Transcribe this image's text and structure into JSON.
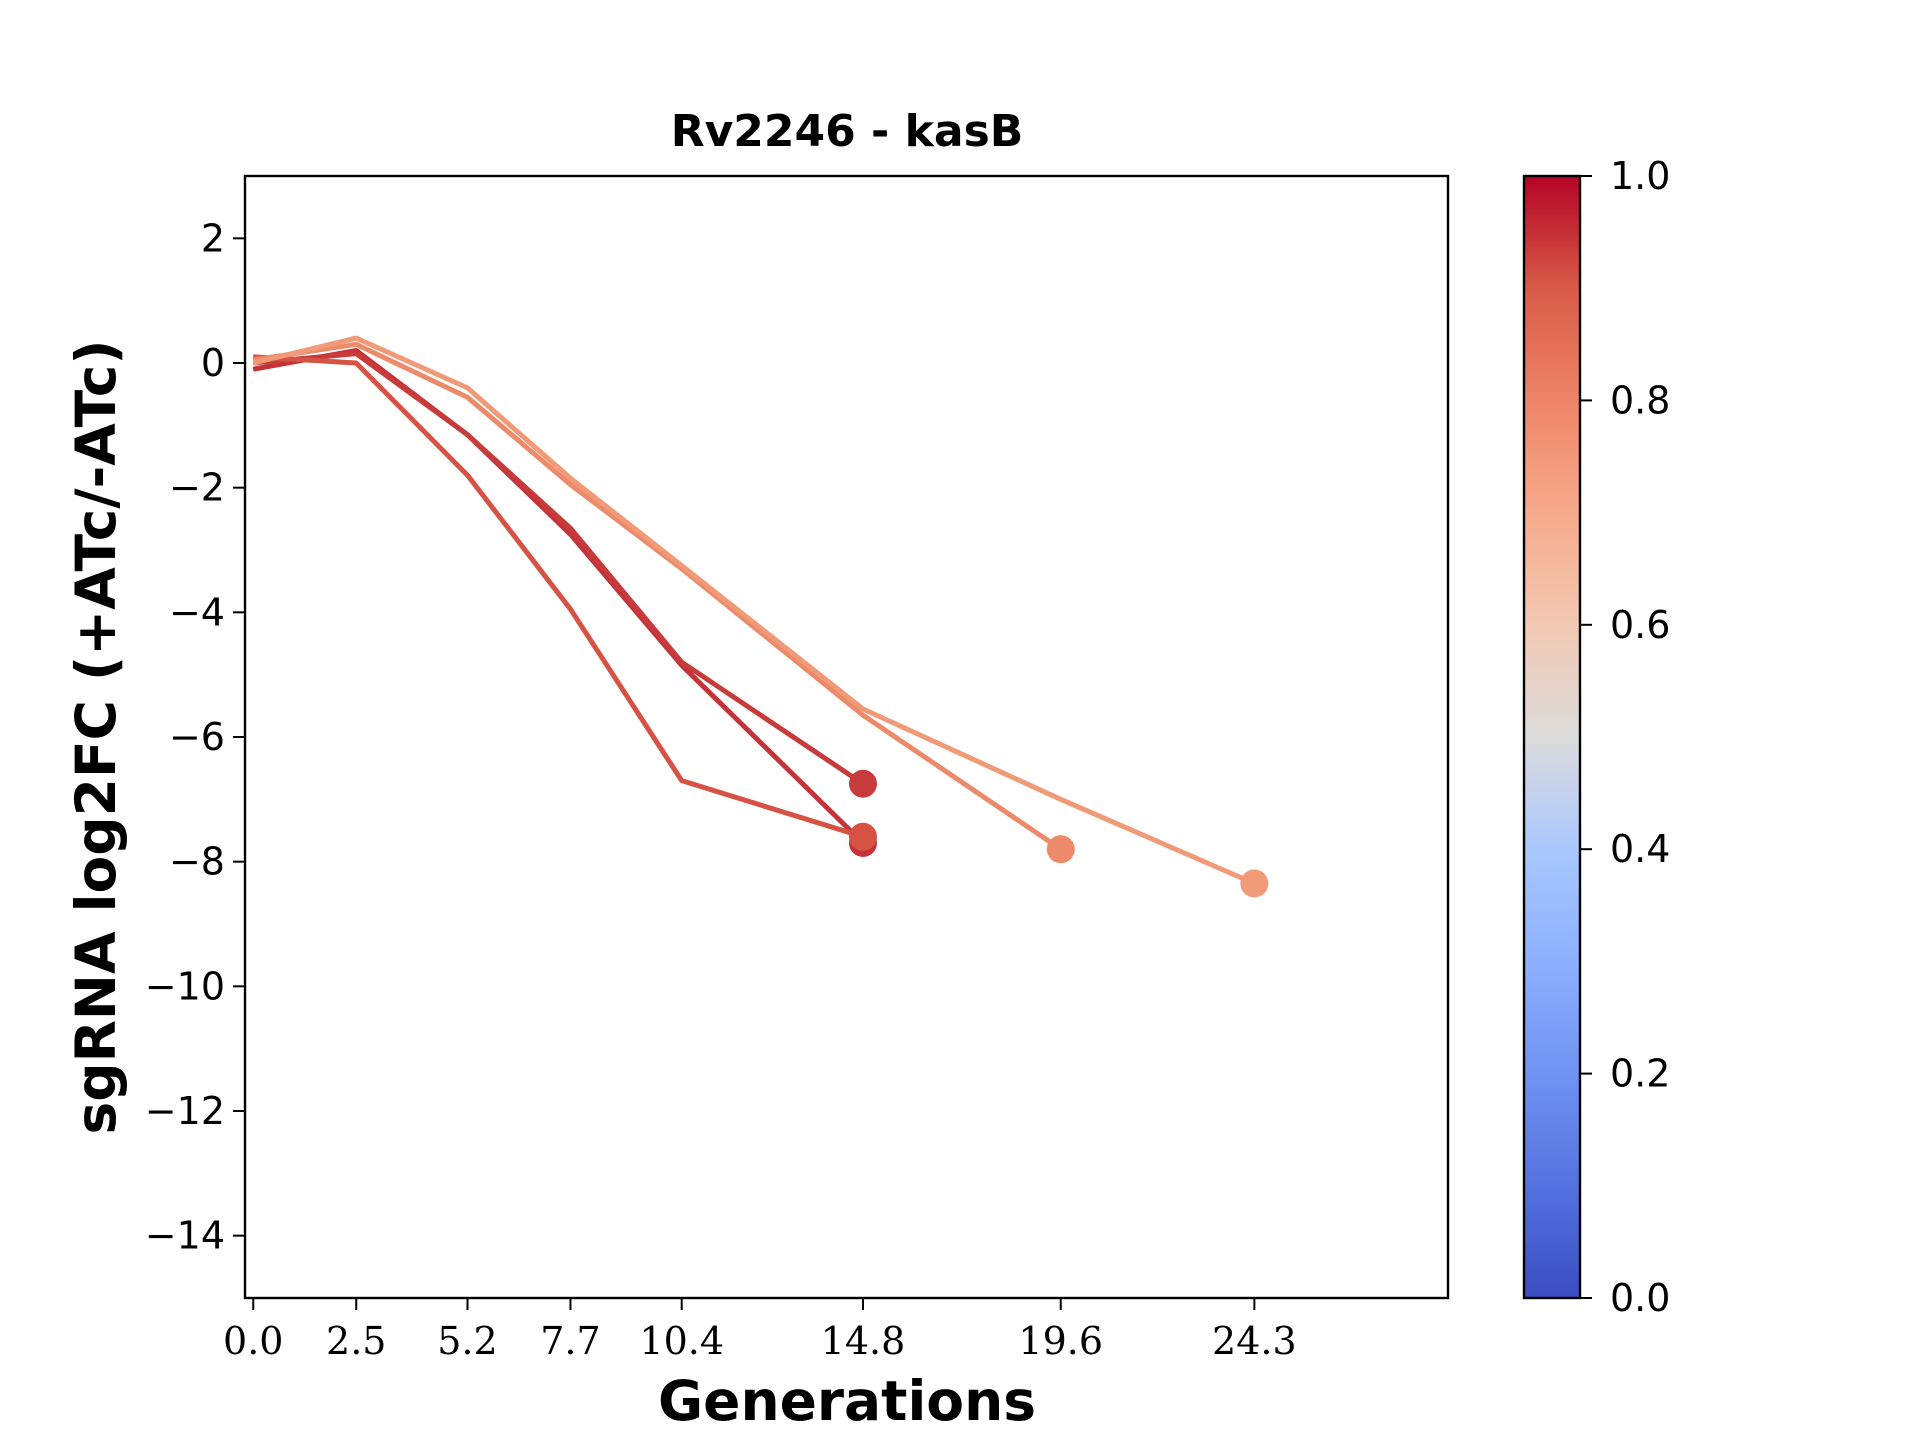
{
  "chart_data": {
    "type": "line",
    "title": "Rv2246 - kasB",
    "xlabel": "Generations",
    "ylabel": "sgRNA log2FC (+ATc/-ATc)",
    "x_ticks": [
      "0.0",
      "2.5",
      "5.2",
      "7.7",
      "10.4",
      "14.8",
      "19.6",
      "24.3"
    ],
    "xlim": [
      -0.2,
      29.0
    ],
    "ylim": [
      -15,
      3
    ],
    "y_ticks": [
      2,
      0,
      -2,
      -4,
      -6,
      -8,
      -10,
      -12,
      -14
    ],
    "y_tick_labels": [
      "2",
      "0",
      "−2",
      "−4",
      "−6",
      "−8",
      "−10",
      "−12",
      "−14"
    ],
    "grid": false,
    "colorbar": {
      "colormap": "coolwarm",
      "range": [
        0.0,
        1.0
      ],
      "ticks": [
        0.0,
        0.2,
        0.4,
        0.6,
        0.8,
        1.0
      ],
      "tick_labels": [
        "0.0",
        "0.2",
        "0.4",
        "0.6",
        "0.8",
        "1.0"
      ]
    },
    "series": [
      {
        "color": "#c5333a",
        "x": [
          0.0,
          2.5,
          5.2,
          7.7,
          10.4,
          14.8
        ],
        "y": [
          -0.1,
          0.2,
          -1.15,
          -2.75,
          -4.85,
          -7.7
        ]
      },
      {
        "color": "#c83b3b",
        "x": [
          0.0,
          2.5,
          5.2,
          7.7,
          10.4,
          14.8
        ],
        "y": [
          0.0,
          0.15,
          -1.15,
          -2.65,
          -4.8,
          -6.75
        ]
      },
      {
        "color": "#d65244",
        "x": [
          0.0,
          2.5,
          5.2,
          7.7,
          10.4,
          14.8
        ],
        "y": [
          0.1,
          0.0,
          -1.8,
          -3.95,
          -6.7,
          -7.6
        ]
      },
      {
        "color": "#ec8a6a",
        "x": [
          0.0,
          2.5,
          5.2,
          7.7,
          10.4,
          14.8,
          19.6
        ],
        "y": [
          0.05,
          0.3,
          -0.55,
          -1.95,
          -3.3,
          -5.65,
          -7.8
        ]
      },
      {
        "color": "#f09a77",
        "x": [
          0.0,
          2.5,
          5.2,
          7.7,
          10.4,
          14.8,
          19.6,
          24.3
        ],
        "y": [
          0.0,
          0.4,
          -0.4,
          -1.85,
          -3.25,
          -5.55,
          -7.0,
          -8.35
        ]
      }
    ]
  }
}
